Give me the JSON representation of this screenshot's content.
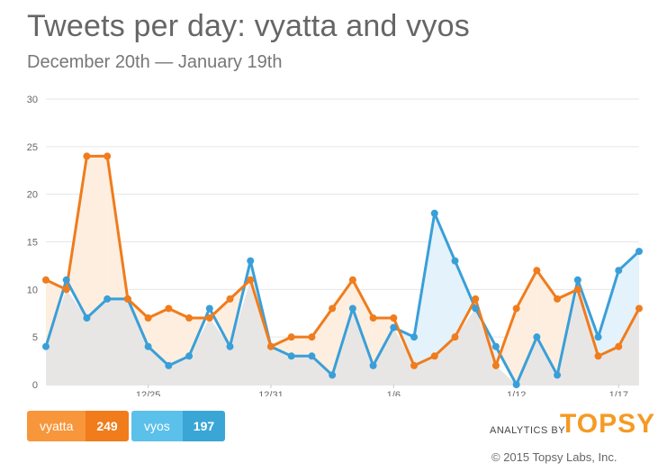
{
  "header": {
    "title": "Tweets per day: vyatta and vyos",
    "subtitle": "December 20th — January 19th"
  },
  "legend": [
    {
      "name": "vyatta",
      "total": "249",
      "color": "#f07c1c"
    },
    {
      "name": "vyos",
      "total": "197",
      "color": "#3aa6d6"
    }
  ],
  "branding": {
    "analytics_by": "ANALYTICS BY",
    "logo": "TOPSY",
    "copyright": "© 2015 Topsy Labs, Inc."
  },
  "chart_data": {
    "type": "line",
    "x_tick_labels": [
      "12/25",
      "12/31",
      "1/6",
      "1/12",
      "1/17"
    ],
    "x_tick_indices": [
      5,
      11,
      17,
      23,
      28
    ],
    "ylim": [
      0,
      30
    ],
    "y_ticks": [
      0,
      5,
      10,
      15,
      20,
      25,
      30
    ],
    "grid": true,
    "series": [
      {
        "name": "vyatta",
        "color": "#f07c1c",
        "values": [
          11,
          10,
          24,
          24,
          9,
          7,
          8,
          7,
          7,
          9,
          11,
          4,
          5,
          5,
          8,
          11,
          7,
          7,
          2,
          3,
          5,
          9,
          2,
          8,
          12,
          9,
          10,
          3,
          4,
          8
        ]
      },
      {
        "name": "vyos",
        "color": "#3a9fd8",
        "values": [
          4,
          11,
          7,
          9,
          9,
          4,
          2,
          3,
          8,
          4,
          13,
          4,
          3,
          3,
          1,
          8,
          2,
          6,
          5,
          18,
          13,
          8,
          4,
          0,
          5,
          1,
          11,
          5,
          12,
          14
        ]
      }
    ]
  }
}
